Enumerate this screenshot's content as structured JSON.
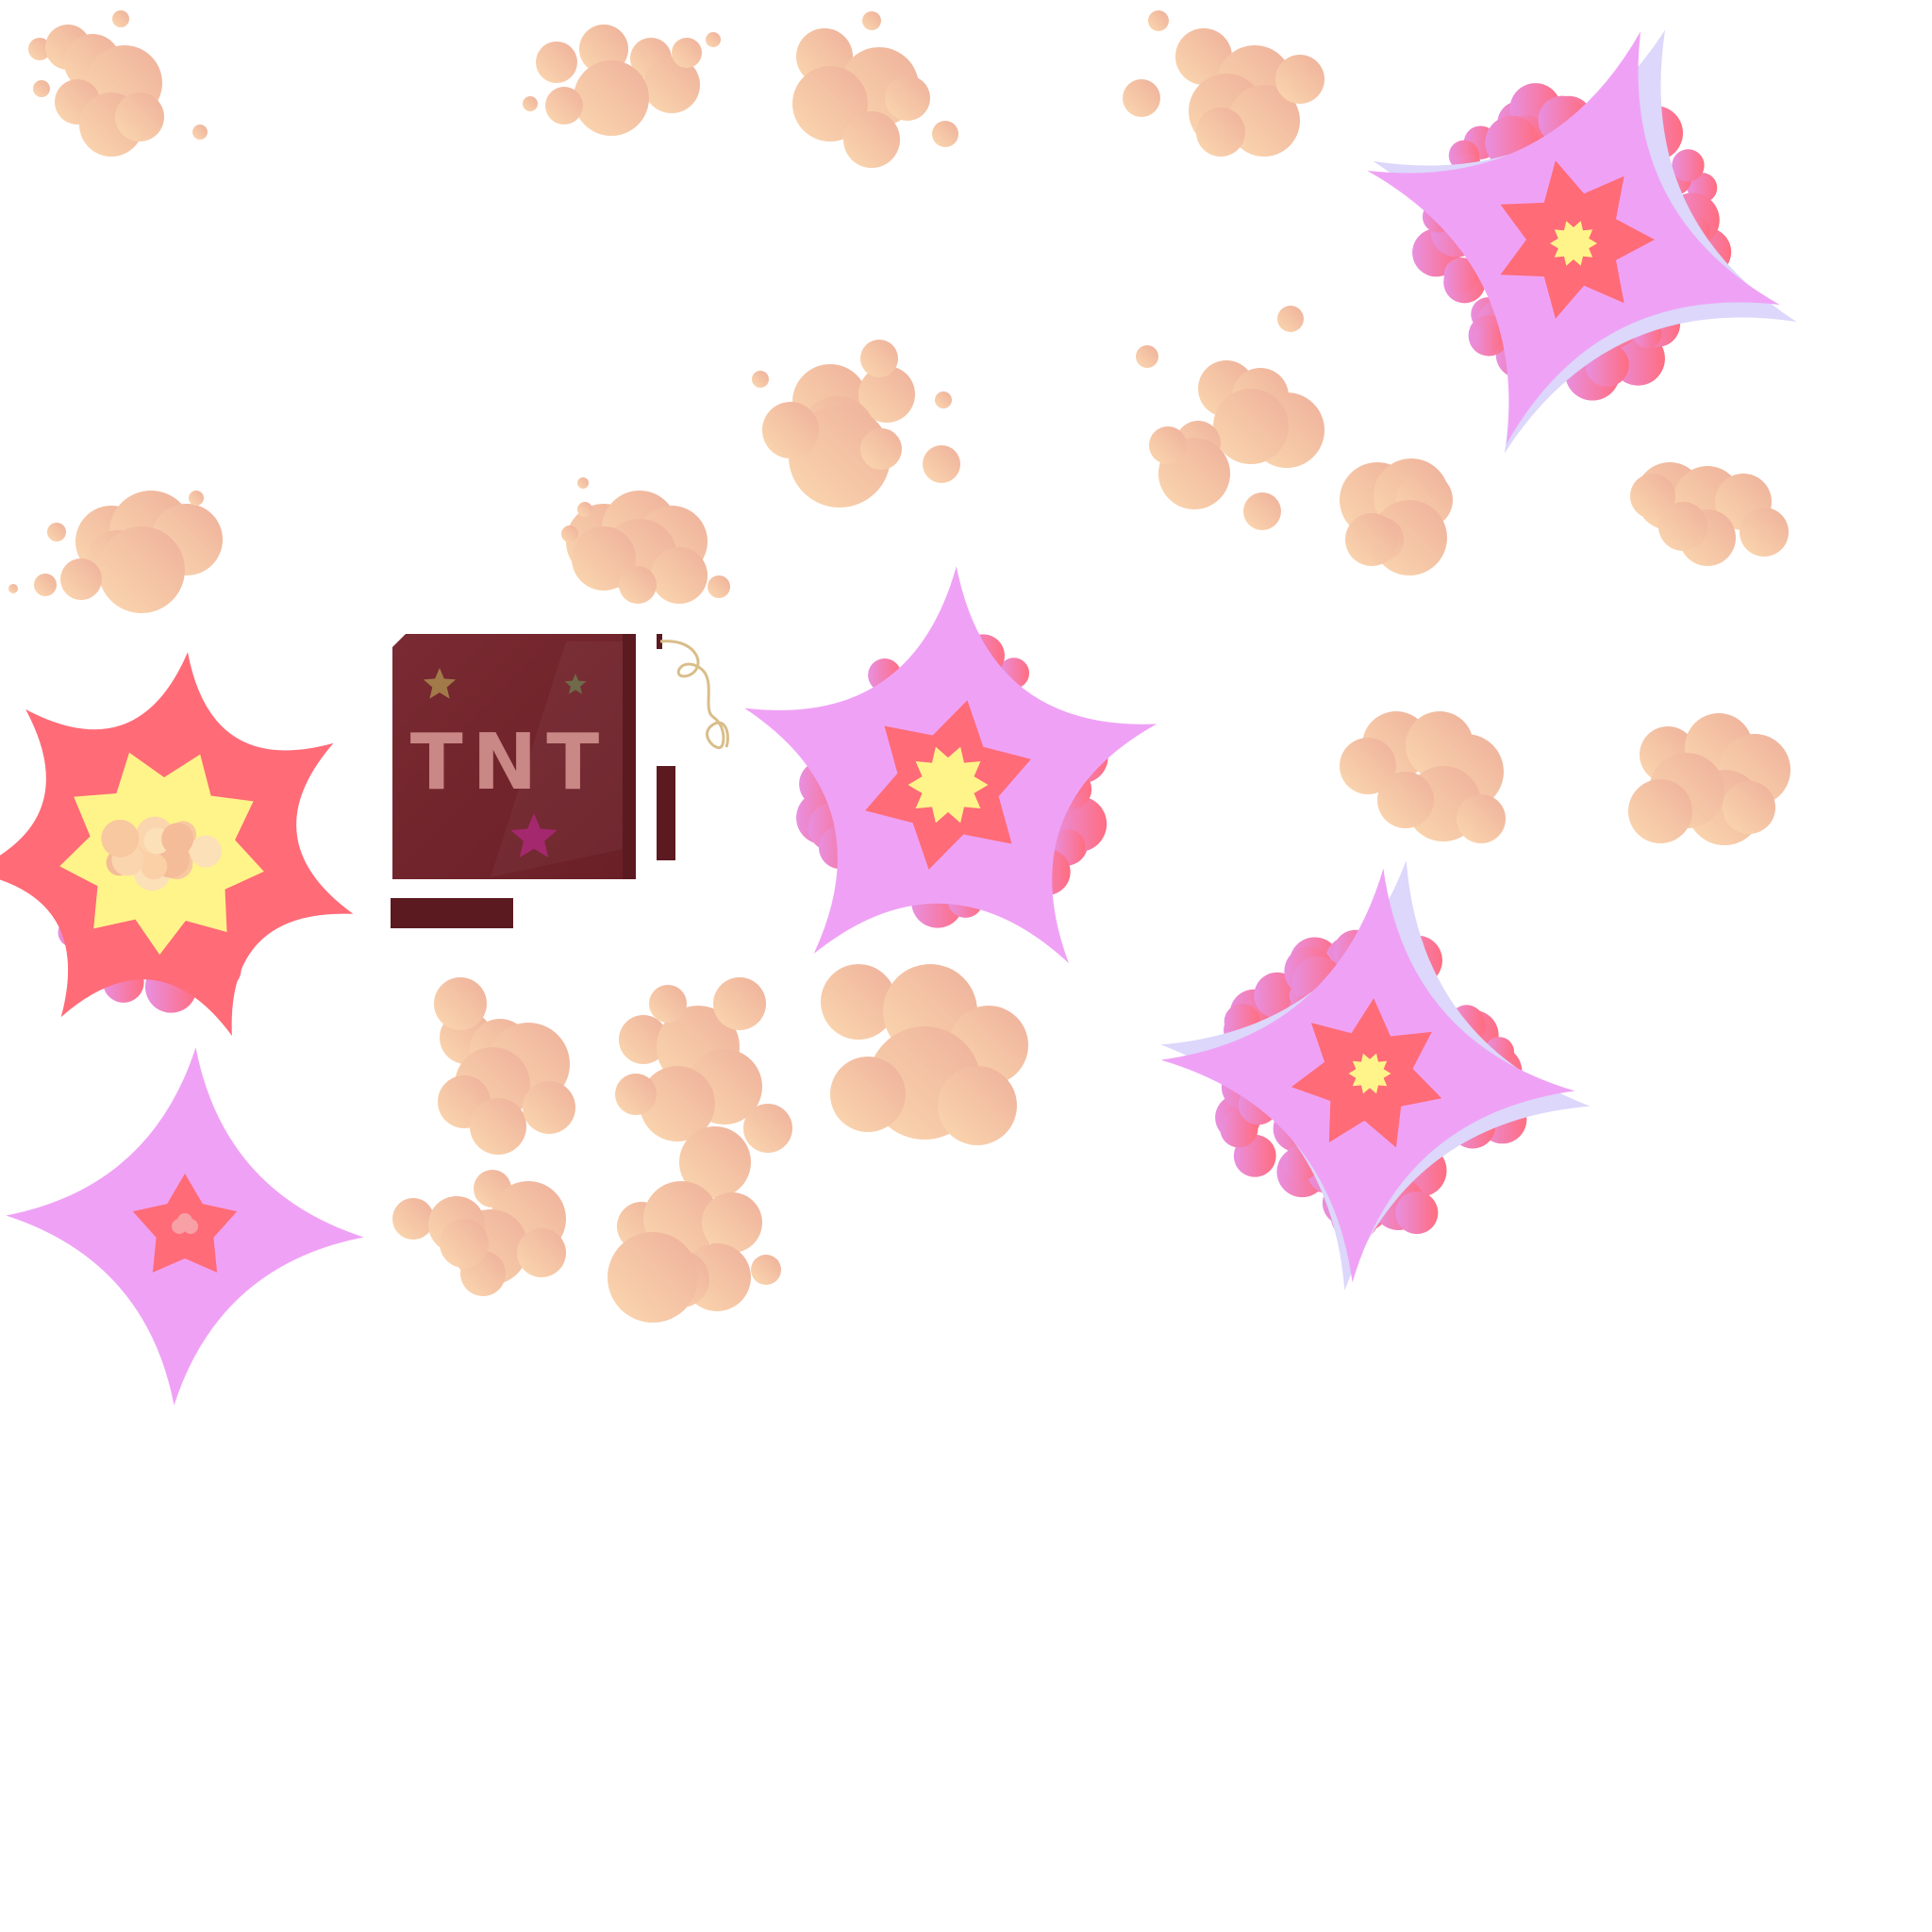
{
  "sprite_sheet": {
    "tnt_crate": {
      "label": "TNT",
      "colors": {
        "body": "#6f2128",
        "shade": "#5a1a20",
        "label": "#c98786",
        "fuse": "#d9be8a",
        "star_gold": "#a27a4a",
        "star_olive": "#6f6a4a",
        "star_magenta": "#a4286e"
      }
    },
    "palette": {
      "smoke_light": "#fbd5ae",
      "smoke_dark": "#efb39a",
      "fire_pink": "#f16d9a",
      "fire_violet": "#e58fe6",
      "flash_red": "#ff6b77",
      "burst_lilac": "#efa2f5",
      "burst_lavender": "#dcd7fb",
      "core_yellow": "#fff48a"
    },
    "sprites": [
      "smoke-puff",
      "smoke-puff",
      "smoke-puff",
      "smoke-puff",
      "explosion-burst",
      "smoke-puff",
      "smoke-puff",
      "smoke-puff",
      "smoke-puff",
      "smoke-puff",
      "smoke-puff",
      "explosion-large",
      "tnt-crate",
      "explosion-burst",
      "smoke-puff",
      "smoke-puff",
      "explosion-burst",
      "flash-star",
      "smoke-puff",
      "smoke-puff",
      "smoke-puff",
      "smoke-puff",
      "smoke-puff"
    ]
  }
}
